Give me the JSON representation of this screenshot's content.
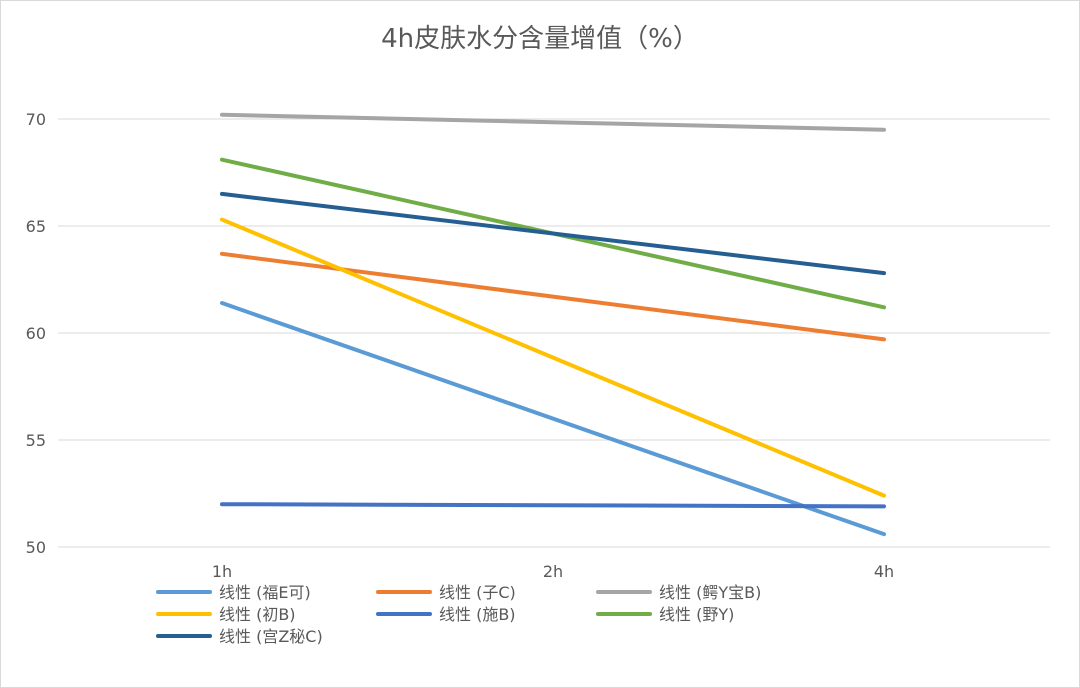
{
  "chart_data": {
    "type": "line",
    "title": "4h皮肤水分含量增值（%）",
    "xlabel": "",
    "ylabel": "",
    "categories": [
      "1h",
      "2h",
      "4h"
    ],
    "category_positions": [
      1,
      2,
      3
    ],
    "ylim": [
      50,
      70
    ],
    "yticks": [
      50,
      55,
      60,
      65,
      70
    ],
    "grid": true,
    "legend_position": "bottom",
    "series": [
      {
        "name": "线性 (福E可)",
        "color": "#5B9BD5",
        "x": [
          1,
          3
        ],
        "y": [
          61.4,
          50.6
        ]
      },
      {
        "name": "线性 (子C)",
        "color": "#ED7D31",
        "x": [
          1,
          3
        ],
        "y": [
          63.7,
          59.7
        ]
      },
      {
        "name": "线性 (鳄Y宝B)",
        "color": "#A5A5A5",
        "x": [
          1,
          3
        ],
        "y": [
          70.2,
          69.5
        ]
      },
      {
        "name": "线性 (初B)",
        "color": "#FFC000",
        "x": [
          1,
          3
        ],
        "y": [
          65.3,
          52.4
        ]
      },
      {
        "name": "线性 (施B)",
        "color": "#4472C4",
        "x": [
          1,
          3
        ],
        "y": [
          52.0,
          51.9
        ]
      },
      {
        "name": "线性 (野Y)",
        "color": "#70AD47",
        "x": [
          1,
          3
        ],
        "y": [
          68.1,
          61.2
        ]
      },
      {
        "name": "线性 (宫Z秘C)",
        "color": "#255E91",
        "x": [
          1,
          3
        ],
        "y": [
          66.5,
          62.8
        ]
      }
    ]
  }
}
